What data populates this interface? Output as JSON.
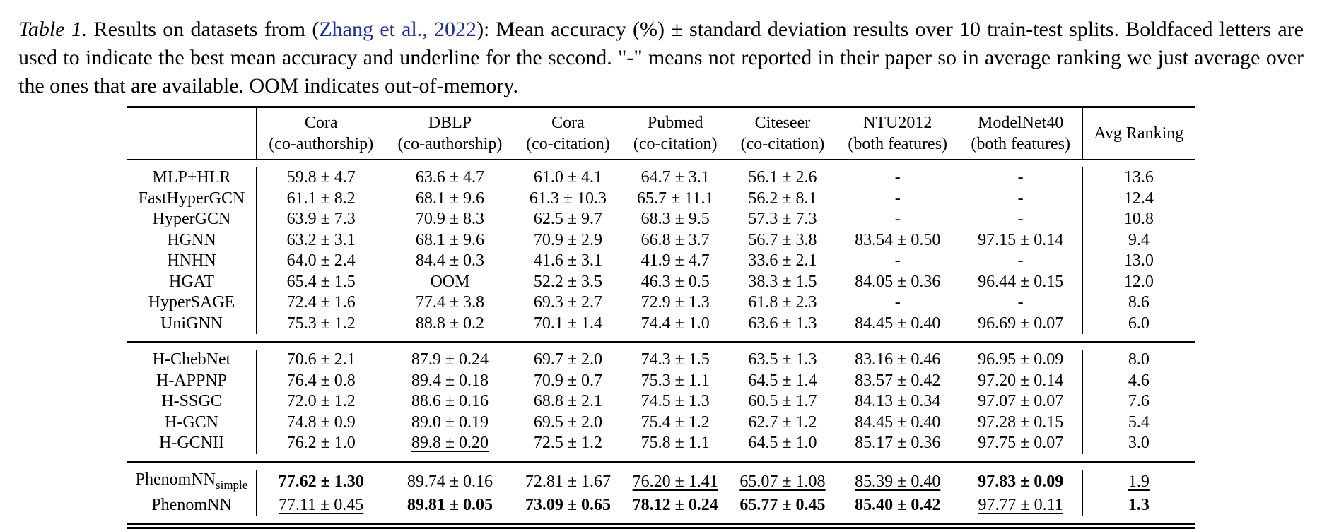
{
  "caption": {
    "label": "Table 1.",
    "text_before": " Results on datasets from (",
    "citation": "Zhang et al., 2022",
    "text_after": "): Mean accuracy (%) ± standard deviation results over 10 train-test splits. Boldfaced letters are used to indicate the best mean accuracy and underline for the second.  \"-\" means not reported in their paper so in average ranking we just average over the ones that are available. OOM indicates out-of-memory."
  },
  "columns": [
    {
      "line1": "Cora",
      "line2": "(co-authorship)"
    },
    {
      "line1": "DBLP",
      "line2": "(co-authorship)"
    },
    {
      "line1": "Cora",
      "line2": "(co-citation)"
    },
    {
      "line1": "Pubmed",
      "line2": "(co-citation)"
    },
    {
      "line1": "Citeseer",
      "line2": "(co-citation)"
    },
    {
      "line1": "NTU2012",
      "line2": "(both features)"
    },
    {
      "line1": "ModelNet40",
      "line2": "(both features)"
    }
  ],
  "avg_header": "Avg Ranking",
  "groups": [
    [
      {
        "name": "MLP+HLR",
        "cells": [
          "59.8 ± 4.7",
          "63.6 ± 4.7",
          "61.0 ± 4.1",
          "64.7 ± 3.1",
          "56.1 ± 2.6",
          "-",
          "-"
        ],
        "avg": "13.6"
      },
      {
        "name": "FastHyperGCN",
        "cells": [
          "61.1 ± 8.2",
          "68.1 ± 9.6",
          "61.3 ± 10.3",
          "65.7 ± 11.1",
          "56.2 ± 8.1",
          "-",
          "-"
        ],
        "avg": "12.4"
      },
      {
        "name": "HyperGCN",
        "cells": [
          "63.9 ± 7.3",
          "70.9 ± 8.3",
          "62.5 ± 9.7",
          "68.3 ± 9.5",
          "57.3 ± 7.3",
          "-",
          "-"
        ],
        "avg": "10.8"
      },
      {
        "name": "HGNN",
        "cells": [
          "63.2 ± 3.1",
          "68.1 ± 9.6",
          "70.9 ± 2.9",
          "66.8 ± 3.7",
          "56.7 ± 3.8",
          "83.54 ± 0.50",
          "97.15 ± 0.14"
        ],
        "avg": "9.4"
      },
      {
        "name": "HNHN",
        "cells": [
          "64.0 ± 2.4",
          "84.4 ± 0.3",
          "41.6 ± 3.1",
          "41.9 ± 4.7",
          "33.6 ± 2.1",
          "-",
          "-"
        ],
        "avg": "13.0"
      },
      {
        "name": "HGAT",
        "cells": [
          "65.4 ± 1.5",
          "OOM",
          "52.2 ± 3.5",
          "46.3 ± 0.5",
          "38.3 ± 1.5",
          "84.05 ± 0.36",
          "96.44 ± 0.15"
        ],
        "avg": "12.0"
      },
      {
        "name": "HyperSAGE",
        "cells": [
          "72.4 ± 1.6",
          "77.4 ± 3.8",
          "69.3 ± 2.7",
          "72.9 ± 1.3",
          "61.8 ± 2.3",
          "-",
          "-"
        ],
        "avg": "8.6"
      },
      {
        "name": "UniGNN",
        "cells": [
          "75.3 ± 1.2",
          "88.8 ± 0.2",
          "70.1 ± 1.4",
          "74.4 ± 1.0",
          "63.6 ± 1.3",
          "84.45 ± 0.40",
          "96.69 ± 0.07"
        ],
        "avg": "6.0"
      }
    ],
    [
      {
        "name": "H-ChebNet",
        "cells": [
          "70.6 ± 2.1",
          "87.9 ± 0.24",
          "69.7 ± 2.0",
          "74.3 ± 1.5",
          "63.5 ± 1.3",
          "83.16 ± 0.46",
          "96.95 ± 0.09"
        ],
        "avg": "8.0"
      },
      {
        "name": "H-APPNP",
        "cells": [
          "76.4 ± 0.8",
          "89.4 ± 0.18",
          "70.9 ± 0.7",
          "75.3 ± 1.1",
          "64.5 ± 1.4",
          "83.57 ± 0.42",
          "97.20 ± 0.14"
        ],
        "avg": "4.6"
      },
      {
        "name": "H-SSGC",
        "cells": [
          "72.0 ± 1.2",
          "88.6 ± 0.16",
          "68.8 ± 2.1",
          "74.5 ± 1.3",
          "60.5 ± 1.7",
          "84.13 ± 0.34",
          "97.07 ± 0.07"
        ],
        "avg": "7.6"
      },
      {
        "name": "H-GCN",
        "cells": [
          "74.8 ± 0.9",
          "89.0 ± 0.19",
          "69.5 ± 2.0",
          "75.4 ± 1.2",
          "62.7 ± 1.2",
          "84.45 ± 0.40",
          "97.28 ± 0.15"
        ],
        "avg": "5.4"
      },
      {
        "name": "H-GCNII",
        "cells": [
          "76.2 ± 1.0",
          "89.8 ± 0.20",
          "72.5 ± 1.2",
          "75.8 ± 1.1",
          "64.5 ± 1.0",
          "85.17 ± 0.36",
          "97.75 ± 0.07"
        ],
        "avg": "3.0",
        "underline": [
          1
        ]
      }
    ],
    [
      {
        "name": "PhenomNN",
        "sub": "simple",
        "cells": [
          "77.62 ± 1.30",
          "89.74 ± 0.16",
          "72.81 ± 1.67",
          "76.20 ± 1.41",
          "65.07 ± 1.08",
          "85.39 ± 0.40",
          "97.83 ± 0.09"
        ],
        "avg": "1.9",
        "bold": [
          0,
          6
        ],
        "underline": [
          3,
          4,
          5,
          7
        ]
      },
      {
        "name": "PhenomNN",
        "cells": [
          "77.11 ± 0.45",
          "89.81 ± 0.05",
          "73.09 ± 0.65",
          "78.12 ± 0.24",
          "65.77 ± 0.45",
          "85.40 ± 0.42",
          "97.77 ± 0.11"
        ],
        "avg": "1.3",
        "bold": [
          1,
          2,
          3,
          4,
          5,
          7
        ],
        "underline": [
          0,
          6
        ]
      }
    ]
  ]
}
